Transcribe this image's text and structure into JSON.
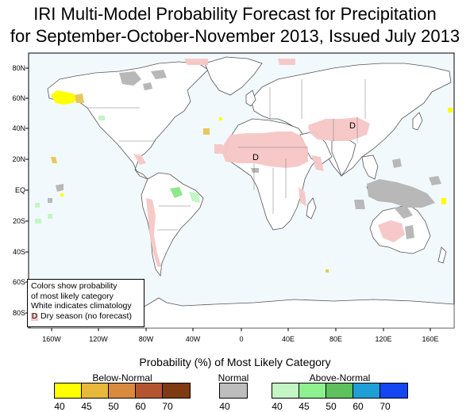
{
  "title_line1": "IRI Multi-Model Probability Forecast for Precipitation",
  "title_line2": "for September-October-November 2013, Issued July 2013",
  "lat_labels": [
    "80N",
    "60N",
    "40N",
    "20N",
    "EQ",
    "20S",
    "40S",
    "60S",
    "80S"
  ],
  "lon_labels": [
    "160W",
    "120W",
    "80W",
    "40W",
    "0",
    "40E",
    "80E",
    "120E",
    "160E"
  ],
  "dry_marker": "D",
  "note": {
    "line1": "Colors show probability",
    "line2": "of most likely category",
    "line3": "White indicates climatology",
    "dry": "Dry season (no forecast)"
  },
  "legend": {
    "title": "Probability (%) of Most Likely Category",
    "below_label": "Below-Normal",
    "normal_label": "Normal",
    "above_label": "Above-Normal",
    "below_values": [
      "40",
      "45",
      "50",
      "60",
      "70"
    ],
    "normal_values": [
      "40"
    ],
    "above_values": [
      "40",
      "45",
      "50",
      "60",
      "70"
    ],
    "below_colors": [
      "#ffff00",
      "#e8b83a",
      "#d98a3f",
      "#b45530",
      "#7f3a12"
    ],
    "normal_colors": [
      "#bdbdbd"
    ],
    "above_colors": [
      "#c4f5c4",
      "#8ef08e",
      "#5ec15e",
      "#1f9fd6",
      "#1446f2"
    ]
  },
  "colors": {
    "ocean": "#f2f9fd",
    "land": "#ffffff",
    "coast": "#555555",
    "dry": "#f6c7c6",
    "normal": "#b8b8b8",
    "below": "#ffff00",
    "below2": "#e8c85a",
    "above": "#c4f5c4",
    "above2": "#8ee88e"
  }
}
